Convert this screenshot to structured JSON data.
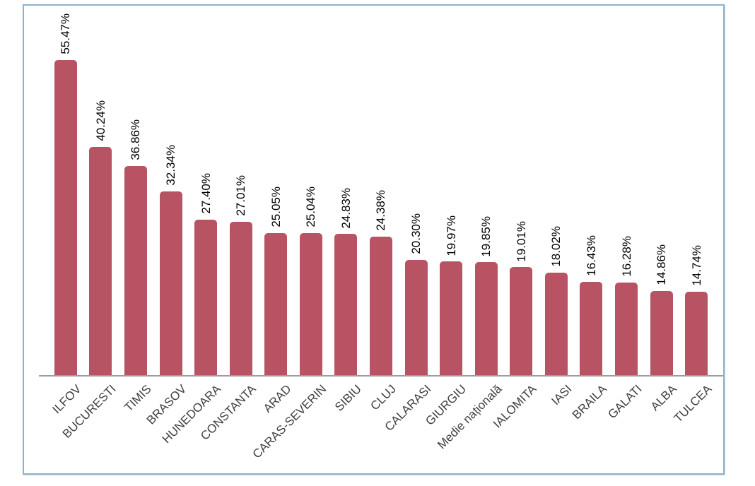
{
  "chart_data": {
    "type": "bar",
    "title": "",
    "xlabel": "",
    "ylabel": "",
    "ylim": [
      0,
      60
    ],
    "grid": false,
    "legend_position": "none",
    "value_label_rotation_deg": 90,
    "category_label_rotation_deg": 45,
    "categories": [
      "ILFOV",
      "BUCURESTI",
      "TIMIS",
      "BRASOV",
      "HUNEDOARA",
      "CONSTANTA",
      "ARAD",
      "CARAS-SEVERIN",
      "SIBIU",
      "CLUJ",
      "CALARASI",
      "GIURGIU",
      "Medie națională",
      "IALOMITA",
      "IASI",
      "BRAILA",
      "GALATI",
      "ALBA",
      "TULCEA"
    ],
    "values": [
      55.47,
      40.24,
      36.86,
      32.34,
      27.4,
      27.01,
      25.05,
      25.04,
      24.83,
      24.38,
      20.3,
      19.97,
      19.85,
      19.01,
      18.02,
      16.43,
      16.28,
      14.86,
      14.74
    ],
    "value_labels": [
      "55.47%",
      "40.24%",
      "36.86%",
      "32.34%",
      "27.40%",
      "27.01%",
      "25.05%",
      "25.04%",
      "24.83%",
      "24.38%",
      "20.30%",
      "19.97%",
      "19.85%",
      "19.01%",
      "18.02%",
      "16.43%",
      "16.28%",
      "14.86%",
      "14.74%"
    ],
    "colors": {
      "bar": "#b85364",
      "frame_border": "#8fb1cd",
      "axis_line": "#9d9d9d",
      "value_label_text": "#000000",
      "category_label_text": "#3f3f3f",
      "background": "#ffffff"
    }
  }
}
